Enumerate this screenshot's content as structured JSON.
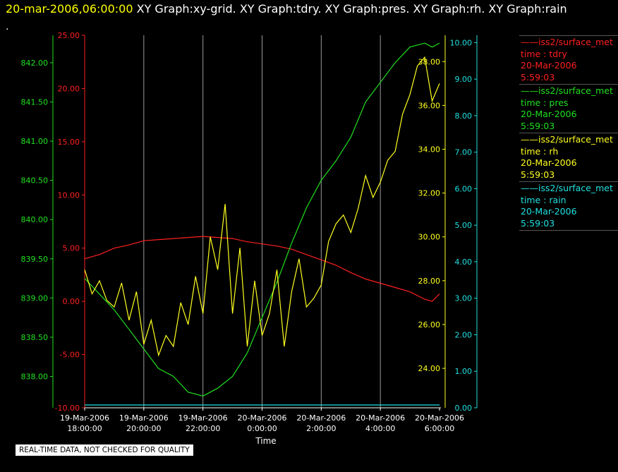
{
  "header": {
    "date": "20-mar-2006,06:00:00",
    "titles": "XY Graph:xy-grid.  XY Graph:tdry.  XY Graph:pres.  XY Graph:rh.  XY Graph:rain",
    "dot": "."
  },
  "footer": {
    "note": "REAL-TIME DATA, NOT CHECKED FOR QUALITY"
  },
  "legend": [
    {
      "source": "iss2/surface_met",
      "field": "time : tdry",
      "date": "20-Mar-2006",
      "time": "5:59:03",
      "color": "#ff2020"
    },
    {
      "source": "iss2/surface_met",
      "field": "time : pres",
      "date": "20-Mar-2006",
      "time": "5:59:03",
      "color": "#20e020"
    },
    {
      "source": "iss2/surface_met",
      "field": "time : rh",
      "date": "20-Mar-2006",
      "time": "5:59:03",
      "color": "#ffff20"
    },
    {
      "source": "iss2/surface_met",
      "field": "time : rain",
      "date": "20-Mar-2006",
      "time": "5:59:03",
      "color": "#20e0e0"
    }
  ],
  "chart_data": {
    "type": "line",
    "xlabel": "Time",
    "x_ticks": [
      {
        "date": "19-Mar-2006",
        "time": "18:00:00",
        "hours": 18
      },
      {
        "date": "19-Mar-2006",
        "time": "20:00:00",
        "hours": 20
      },
      {
        "date": "19-Mar-2006",
        "time": "22:00:00",
        "hours": 22
      },
      {
        "date": "20-Mar-2006",
        "time": "0:00:00",
        "hours": 24
      },
      {
        "date": "20-Mar-2006",
        "time": "2:00:00",
        "hours": 26
      },
      {
        "date": "20-Mar-2006",
        "time": "4:00:00",
        "hours": 28
      },
      {
        "date": "20-Mar-2006",
        "time": "6:00:00",
        "hours": 30
      }
    ],
    "xlim_hours": [
      18,
      30
    ],
    "grid": "vertical",
    "axes": {
      "tdry": {
        "ylim": [
          -10,
          25
        ],
        "ticks": [
          "-10.00",
          "-5.00",
          "0.00",
          "5.00",
          "10.00",
          "15.00",
          "20.00",
          "25.00"
        ],
        "color": "#ff2020"
      },
      "pres": {
        "ylim": [
          837.6,
          842.35
        ],
        "ticks": [
          "838.00",
          "838.50",
          "839.00",
          "839.50",
          "840.00",
          "840.50",
          "841.00",
          "841.50",
          "842.00"
        ],
        "color": "#20e020"
      },
      "rh": {
        "ylim": [
          22.2,
          39.2
        ],
        "ticks": [
          "24.00",
          "26.00",
          "28.00",
          "30.00",
          "32.00",
          "34.00",
          "36.00",
          "38.00"
        ],
        "color": "#ffff20"
      },
      "rain": {
        "ylim": [
          0,
          10.2
        ],
        "ticks": [
          "0.00",
          "1.00",
          "2.00",
          "3.00",
          "4.00",
          "5.00",
          "6.00",
          "7.00",
          "8.00",
          "9.00",
          "10.00"
        ],
        "color": "#20e0e0"
      }
    },
    "series": [
      {
        "name": "tdry",
        "x": [
          18.0,
          18.5,
          19.0,
          19.5,
          20.0,
          20.5,
          21.0,
          21.5,
          22.0,
          22.5,
          23.0,
          23.5,
          24.0,
          24.5,
          25.0,
          25.5,
          26.0,
          26.5,
          27.0,
          27.5,
          28.0,
          28.5,
          29.0,
          29.5,
          29.75,
          30.0
        ],
        "values": [
          4.0,
          4.4,
          5.0,
          5.3,
          5.7,
          5.8,
          5.9,
          6.0,
          6.1,
          6.0,
          5.9,
          5.6,
          5.4,
          5.2,
          4.9,
          4.4,
          3.9,
          3.4,
          2.7,
          2.1,
          1.7,
          1.3,
          0.9,
          0.2,
          0.0,
          0.7
        ]
      },
      {
        "name": "pres",
        "x": [
          18.0,
          18.5,
          19.0,
          19.5,
          20.0,
          20.5,
          21.0,
          21.5,
          22.0,
          22.5,
          23.0,
          23.5,
          24.0,
          24.5,
          25.0,
          25.5,
          26.0,
          26.5,
          27.0,
          27.5,
          28.0,
          28.5,
          29.0,
          29.5,
          29.75,
          30.0
        ],
        "values": [
          839.25,
          839.05,
          838.85,
          838.6,
          838.35,
          838.1,
          838.0,
          837.8,
          837.75,
          837.85,
          838.0,
          838.3,
          838.75,
          839.2,
          839.7,
          840.15,
          840.5,
          840.75,
          841.05,
          841.5,
          841.75,
          842.0,
          842.2,
          842.25,
          842.2,
          842.25
        ]
      },
      {
        "name": "rh",
        "x": [
          18.0,
          18.25,
          18.5,
          18.75,
          19.0,
          19.25,
          19.5,
          19.75,
          20.0,
          20.25,
          20.5,
          20.75,
          21.0,
          21.25,
          21.5,
          21.75,
          22.0,
          22.25,
          22.5,
          22.75,
          23.0,
          23.25,
          23.5,
          23.75,
          24.0,
          24.25,
          24.5,
          24.75,
          25.0,
          25.25,
          25.5,
          25.75,
          26.0,
          26.25,
          26.5,
          26.75,
          27.0,
          27.25,
          27.5,
          27.75,
          28.0,
          28.25,
          28.5,
          28.75,
          29.0,
          29.25,
          29.5,
          29.75,
          30.0
        ],
        "values": [
          28.5,
          27.4,
          28.0,
          27.1,
          26.8,
          27.9,
          26.2,
          27.5,
          25.1,
          26.2,
          24.6,
          25.5,
          25.0,
          27.0,
          26.0,
          28.2,
          26.5,
          30.0,
          28.5,
          31.5,
          26.5,
          29.5,
          25.0,
          28.0,
          25.5,
          26.5,
          28.5,
          25.0,
          27.5,
          29.0,
          26.8,
          27.2,
          27.8,
          29.8,
          30.6,
          31.0,
          30.2,
          31.3,
          32.8,
          31.8,
          32.5,
          33.5,
          33.9,
          35.6,
          36.5,
          37.8,
          38.2,
          36.2,
          37.0
        ]
      },
      {
        "name": "rain",
        "x": [
          18.0,
          30.0
        ],
        "values": [
          0.0,
          0.0
        ]
      }
    ]
  }
}
